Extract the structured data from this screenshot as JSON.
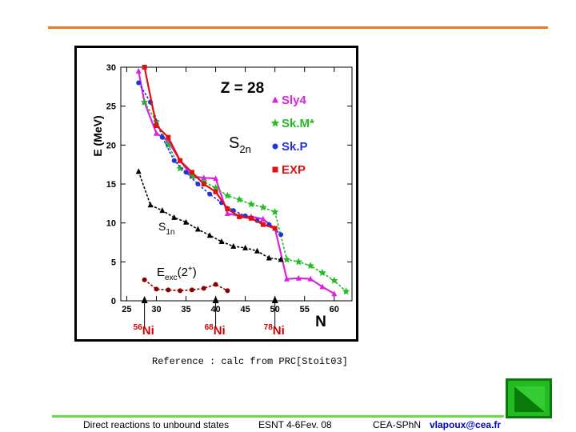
{
  "slide": {
    "reference": "Reference : calc from PRC[Stoit03]",
    "footer_left": "Direct reactions to unbound states",
    "footer_mid": "ESNT 4-6Fev. 08",
    "footer_right": "CEA-SPhN",
    "footer_email": "vlapoux@cea.fr",
    "nav_icon": "triangle-next-icon",
    "accent_top": "#f07820",
    "accent_bottom": "#66dd44"
  },
  "chart_data": {
    "type": "line",
    "title": "Z = 28",
    "ylabel": "E (MeV)",
    "xlabel": "N",
    "xlim": [
      24,
      63
    ],
    "ylim": [
      0,
      30
    ],
    "xticks": [
      25,
      30,
      35,
      40,
      45,
      50,
      55,
      60
    ],
    "yticks": [
      0,
      5,
      10,
      15,
      20,
      25,
      30
    ],
    "legend_position": "top-right",
    "annotations": {
      "s2n": "S",
      "s2n_sub": "2n",
      "s1n": "S",
      "s1n_sub": "1n",
      "eexc": "E",
      "eexc_sub": "exc",
      "eexc_tail": "(2",
      "eexc_sup": "+",
      "eexc_close": ")"
    },
    "isotopes": [
      {
        "mass": "56",
        "element": "Ni",
        "n": 28
      },
      {
        "mass": "68",
        "element": "Ni",
        "n": 40
      },
      {
        "mass": "78",
        "element": "Ni",
        "n": 50
      }
    ],
    "series": [
      {
        "name": "Sly4",
        "color": "#dd22dd",
        "marker": "triangle",
        "dashed": false,
        "x": [
          27,
          28,
          30,
          32,
          34,
          36,
          38,
          40,
          42,
          44,
          46,
          48,
          50,
          52,
          54,
          56,
          58,
          60
        ],
        "y": [
          29.5,
          25.5,
          21.5,
          20.5,
          18.0,
          16.0,
          15.8,
          15.7,
          11.2,
          10.9,
          10.8,
          10.5,
          9.3,
          2.8,
          2.9,
          2.8,
          1.8,
          0.9
        ]
      },
      {
        "name": "Sk.M*",
        "color": "#22bb22",
        "marker": "star",
        "dashed": true,
        "x": [
          28,
          30,
          32,
          34,
          36,
          38,
          40,
          42,
          44,
          46,
          48,
          50,
          52,
          54,
          56,
          58,
          60,
          62
        ],
        "y": [
          25.5,
          23.0,
          20.0,
          17.0,
          16.0,
          15.3,
          14.5,
          13.5,
          13.0,
          12.4,
          12.0,
          11.4,
          5.3,
          5.0,
          4.5,
          3.6,
          2.6,
          1.2
        ]
      },
      {
        "name": "Sk.P",
        "color": "#2233dd",
        "marker": "circle",
        "dashed": true,
        "x": [
          27,
          29,
          31,
          33,
          35,
          37,
          39,
          41,
          43,
          45,
          47,
          49,
          51
        ],
        "y": [
          28.0,
          25.5,
          21.0,
          18.0,
          16.5,
          15.0,
          13.7,
          12.6,
          11.6,
          10.9,
          10.3,
          9.8,
          8.5
        ]
      },
      {
        "name": "EXP",
        "color": "#dd1111",
        "marker": "square",
        "dashed": false,
        "x": [
          28,
          30,
          32,
          34,
          36,
          38,
          40,
          42,
          44,
          46,
          48,
          50
        ],
        "y": [
          30.0,
          22.5,
          21.0,
          18.0,
          16.5,
          15.0,
          14.0,
          11.8,
          10.8,
          10.6,
          9.8,
          9.3
        ]
      },
      {
        "name": "S1n",
        "color": "#000000",
        "marker": "triangle",
        "dashed": true,
        "legend": false,
        "x": [
          27,
          29,
          31,
          33,
          35,
          37,
          39,
          41,
          43,
          45,
          47,
          49,
          51
        ],
        "y": [
          16.6,
          12.3,
          11.6,
          10.7,
          10.1,
          9.2,
          8.4,
          7.6,
          7.0,
          6.8,
          6.4,
          5.5,
          5.3
        ]
      },
      {
        "name": "Eexc",
        "color": "#880000",
        "marker": "circle",
        "dashed": true,
        "legend": false,
        "x": [
          28,
          30,
          32,
          34,
          36,
          38,
          40,
          42
        ],
        "y": [
          2.7,
          1.5,
          1.4,
          1.3,
          1.4,
          1.6,
          2.1,
          1.3
        ]
      }
    ]
  }
}
